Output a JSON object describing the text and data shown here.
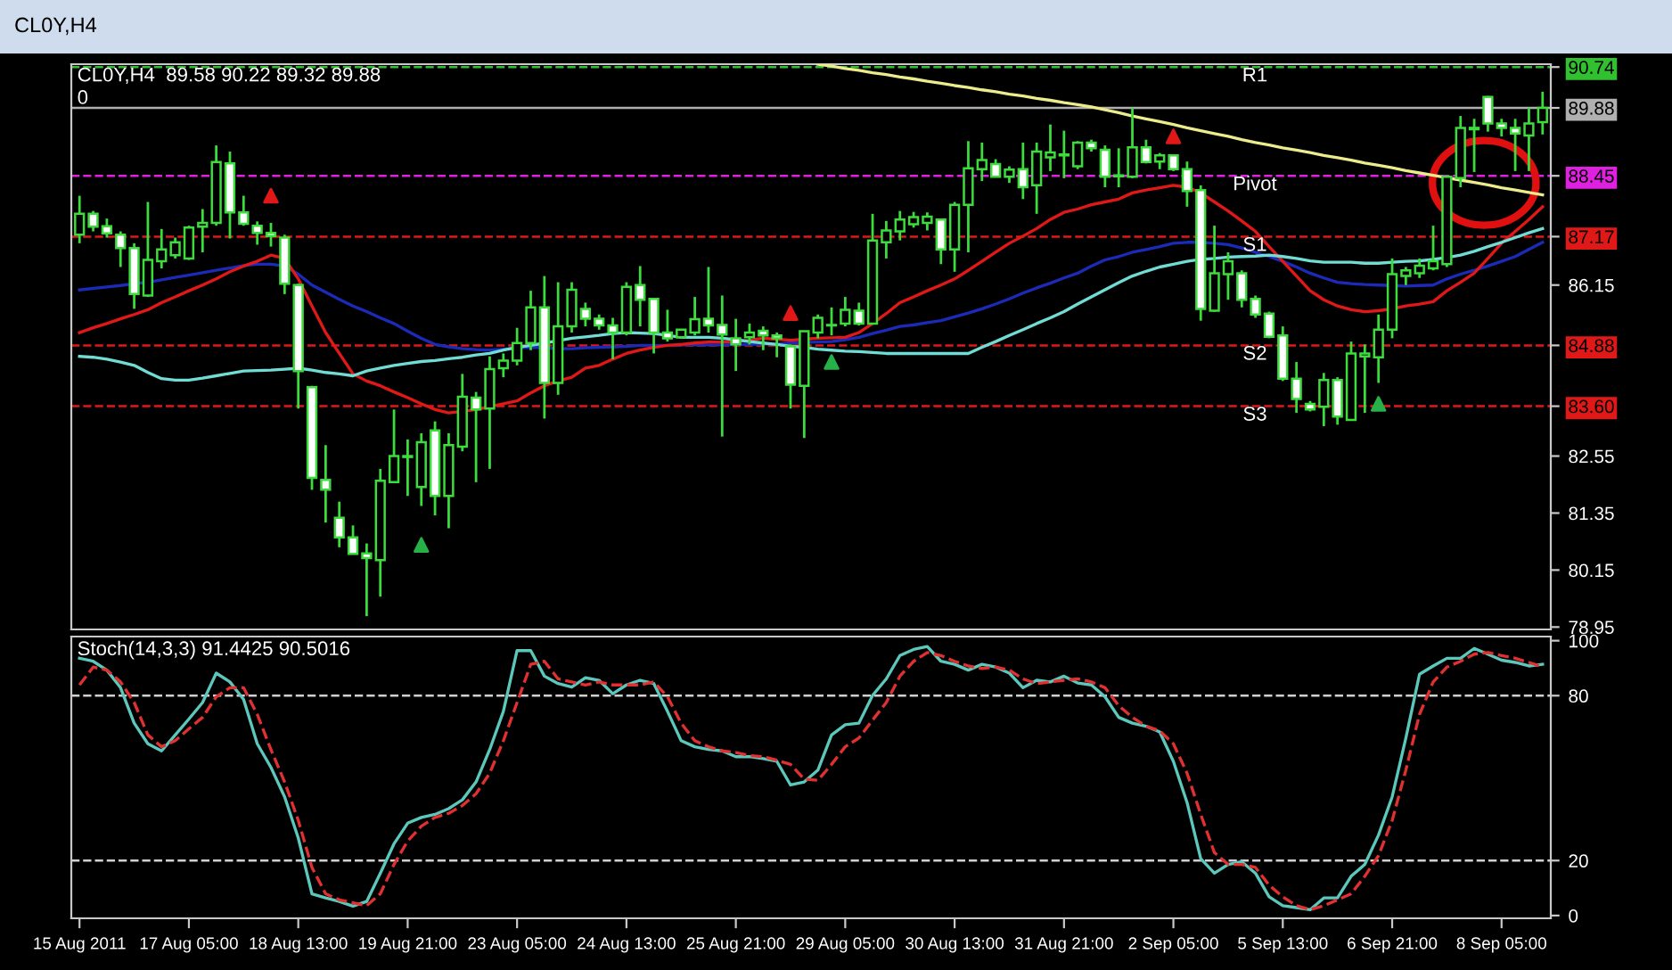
{
  "chart_data": [
    {
      "type": "candlestick",
      "title": "CL0Y,H4",
      "subtitle": "CL0Y,H4  89.58 90.22 89.32 89.88",
      "annotations": [
        "0"
      ],
      "categories": [
        null,
        null,
        null,
        null,
        null,
        null,
        null,
        null,
        null,
        null,
        null,
        null,
        null,
        null,
        null,
        null,
        null,
        null,
        null,
        null,
        null,
        null,
        null,
        null,
        null,
        null,
        null,
        null,
        null,
        null,
        null,
        null,
        null,
        null,
        null,
        null,
        null,
        null,
        null,
        null,
        null,
        null,
        null,
        null,
        null,
        null,
        null,
        null,
        null,
        null,
        null,
        null,
        null,
        null,
        null,
        null,
        null,
        null,
        null,
        null,
        null,
        null,
        null,
        null,
        null,
        null,
        null,
        null,
        null,
        null,
        null,
        null,
        null,
        null,
        null,
        null,
        null,
        null,
        null,
        null,
        null,
        null,
        null,
        null,
        null,
        null,
        null,
        null,
        null,
        null,
        null,
        null,
        null,
        null,
        null,
        null,
        null,
        null,
        null,
        null,
        null,
        null,
        null,
        null,
        null,
        null,
        null,
        null
      ],
      "ohlc": [
        [
          87.21,
          88.03,
          87.03,
          87.65
        ],
        [
          87.65,
          87.71,
          87.28,
          87.38
        ],
        [
          87.39,
          87.55,
          87.15,
          87.24
        ],
        [
          87.21,
          87.28,
          86.53,
          86.93
        ],
        [
          86.93,
          87.03,
          85.65,
          85.96
        ],
        [
          85.93,
          87.9,
          85.9,
          86.68
        ],
        [
          86.65,
          87.33,
          86.5,
          86.9
        ],
        [
          86.78,
          87.15,
          86.71,
          87.05
        ],
        [
          86.71,
          87.4,
          86.68,
          87.36
        ],
        [
          87.38,
          87.75,
          86.84,
          87.46
        ],
        [
          87.46,
          89.09,
          87.4,
          88.74
        ],
        [
          88.71,
          88.96,
          87.13,
          87.68
        ],
        [
          87.68,
          88.03,
          87.4,
          87.44
        ],
        [
          87.4,
          87.49,
          87.0,
          87.25
        ],
        [
          87.25,
          87.46,
          86.96,
          87.18
        ],
        [
          87.15,
          87.21,
          85.96,
          86.18
        ],
        [
          86.15,
          86.18,
          83.55,
          84.34
        ],
        [
          84.0,
          84.03,
          81.84,
          82.09
        ],
        [
          82.05,
          82.78,
          81.15,
          81.84
        ],
        [
          81.25,
          81.59,
          80.63,
          80.84
        ],
        [
          80.84,
          81.09,
          80.49,
          80.49
        ],
        [
          80.5,
          80.71,
          79.18,
          80.4
        ],
        [
          80.36,
          82.28,
          79.59,
          82.03
        ],
        [
          82.0,
          83.53,
          82.0,
          82.55
        ],
        [
          82.53,
          82.9,
          81.71,
          82.55
        ],
        [
          81.9,
          83.03,
          81.5,
          82.84
        ],
        [
          83.09,
          83.28,
          81.3,
          81.71
        ],
        [
          81.71,
          83.03,
          81.03,
          82.78
        ],
        [
          82.75,
          84.28,
          82.65,
          83.8
        ],
        [
          83.78,
          83.9,
          82.0,
          83.53
        ],
        [
          83.55,
          84.65,
          82.28,
          84.38
        ],
        [
          84.4,
          84.71,
          84.21,
          84.56
        ],
        [
          84.56,
          85.25,
          84.46,
          84.93
        ],
        [
          84.93,
          86.03,
          84.78,
          85.68
        ],
        [
          85.68,
          86.34,
          83.34,
          84.09
        ],
        [
          84.09,
          86.21,
          83.84,
          85.28
        ],
        [
          85.28,
          86.21,
          85.15,
          86.05
        ],
        [
          85.65,
          85.78,
          85.28,
          85.44
        ],
        [
          85.44,
          85.53,
          85.21,
          85.3
        ],
        [
          85.3,
          85.46,
          84.59,
          85.15
        ],
        [
          85.15,
          86.21,
          85.09,
          86.11
        ],
        [
          86.15,
          86.55,
          85.28,
          85.84
        ],
        [
          85.86,
          85.88,
          84.71,
          85.15
        ],
        [
          85.15,
          85.63,
          84.96,
          85.03
        ],
        [
          85.05,
          85.21,
          85.03,
          85.21
        ],
        [
          85.15,
          85.9,
          85.09,
          85.43
        ],
        [
          85.44,
          86.53,
          85.15,
          85.3
        ],
        [
          85.31,
          85.93,
          82.96,
          85.11
        ],
        [
          85.03,
          85.44,
          84.34,
          84.9
        ],
        [
          85.05,
          85.34,
          84.9,
          85.15
        ],
        [
          85.19,
          85.28,
          84.78,
          85.09
        ],
        [
          85.09,
          85.15,
          84.63,
          85.03
        ],
        [
          84.86,
          84.9,
          83.55,
          84.05
        ],
        [
          84.03,
          85.18,
          82.93,
          85.18
        ],
        [
          85.15,
          85.53,
          85.03,
          85.46
        ],
        [
          85.3,
          85.68,
          85.09,
          85.31
        ],
        [
          85.34,
          85.9,
          85.28,
          85.63
        ],
        [
          85.61,
          85.78,
          85.3,
          85.34
        ],
        [
          85.34,
          87.65,
          85.34,
          87.09
        ],
        [
          87.05,
          87.5,
          86.71,
          87.3
        ],
        [
          87.28,
          87.71,
          87.09,
          87.53
        ],
        [
          87.43,
          87.69,
          87.36,
          87.58
        ],
        [
          87.46,
          87.68,
          87.3,
          87.59
        ],
        [
          87.53,
          87.55,
          86.59,
          86.9
        ],
        [
          86.9,
          87.9,
          86.43,
          87.84
        ],
        [
          87.84,
          89.18,
          86.84,
          88.61
        ],
        [
          88.59,
          89.15,
          88.34,
          88.78
        ],
        [
          88.7,
          88.8,
          88.43,
          88.43
        ],
        [
          88.43,
          88.65,
          88.3,
          88.58
        ],
        [
          88.59,
          89.15,
          87.96,
          88.21
        ],
        [
          88.25,
          89.15,
          87.65,
          88.96
        ],
        [
          88.84,
          89.53,
          88.55,
          88.94
        ],
        [
          88.88,
          89.4,
          88.4,
          88.9
        ],
        [
          88.65,
          89.18,
          88.59,
          89.15
        ],
        [
          89.15,
          89.21,
          88.96,
          89.03
        ],
        [
          89.0,
          89.09,
          88.21,
          88.43
        ],
        [
          88.44,
          89.03,
          88.21,
          88.46
        ],
        [
          88.43,
          89.88,
          88.4,
          89.05
        ],
        [
          89.05,
          89.21,
          88.71,
          88.74
        ],
        [
          88.75,
          88.93,
          88.59,
          88.88
        ],
        [
          88.88,
          88.9,
          88.55,
          88.59
        ],
        [
          88.59,
          88.75,
          87.8,
          88.13
        ],
        [
          88.15,
          88.25,
          85.4,
          85.65
        ],
        [
          85.61,
          87.4,
          85.59,
          86.4
        ],
        [
          86.38,
          86.84,
          85.84,
          86.65
        ],
        [
          86.4,
          86.46,
          85.68,
          85.84
        ],
        [
          85.86,
          85.93,
          85.46,
          85.53
        ],
        [
          85.55,
          85.59,
          85.03,
          85.06
        ],
        [
          85.09,
          85.28,
          84.13,
          84.18
        ],
        [
          84.18,
          84.53,
          83.46,
          83.75
        ],
        [
          83.65,
          83.71,
          83.49,
          83.53
        ],
        [
          83.59,
          84.3,
          83.18,
          84.15
        ],
        [
          84.15,
          84.21,
          83.21,
          83.38
        ],
        [
          83.31,
          84.96,
          83.31,
          84.71
        ],
        [
          84.65,
          84.9,
          83.46,
          84.71
        ],
        [
          84.63,
          85.53,
          84.09,
          85.21
        ],
        [
          85.21,
          86.71,
          85.03,
          86.38
        ],
        [
          86.34,
          86.53,
          86.15,
          86.46
        ],
        [
          86.4,
          86.71,
          86.3,
          86.56
        ],
        [
          86.5,
          87.4,
          86.46,
          86.65
        ],
        [
          86.59,
          88.46,
          86.53,
          88.43
        ],
        [
          88.4,
          89.71,
          88.21,
          89.46
        ],
        [
          89.43,
          89.65,
          88.53,
          89.46
        ],
        [
          90.11,
          90.13,
          89.38,
          89.55
        ],
        [
          89.55,
          89.65,
          89.28,
          89.46
        ],
        [
          89.46,
          89.65,
          88.55,
          89.34
        ],
        [
          89.3,
          89.88,
          88.55,
          89.55
        ],
        [
          89.58,
          90.22,
          89.32,
          89.88
        ]
      ],
      "series": [
        {
          "type": "line",
          "color": "#ecec8c",
          "values": [
            null,
            null,
            null,
            null,
            null,
            null,
            null,
            null,
            null,
            null,
            null,
            null,
            null,
            null,
            null,
            null,
            null,
            null,
            null,
            null,
            null,
            null,
            null,
            null,
            null,
            null,
            null,
            null,
            null,
            null,
            null,
            null,
            null,
            null,
            null,
            null,
            null,
            null,
            null,
            null,
            null,
            null,
            null,
            null,
            null,
            null,
            null,
            null,
            null,
            null,
            null,
            null,
            null,
            null,
            90.8,
            90.76,
            90.71,
            90.67,
            90.62,
            90.58,
            90.53,
            90.49,
            90.44,
            90.4,
            90.35,
            90.31,
            90.26,
            90.22,
            90.17,
            90.13,
            90.08,
            90.04,
            89.99,
            89.95,
            89.9,
            89.84,
            89.78,
            89.71,
            89.65,
            89.59,
            89.53,
            89.46,
            89.4,
            89.34,
            89.28,
            89.21,
            89.15,
            89.1,
            89.04,
            88.99,
            88.94,
            88.88,
            88.83,
            88.78,
            88.72,
            88.67,
            88.62,
            88.56,
            88.51,
            88.46,
            88.41,
            88.36,
            88.31,
            88.26,
            88.2,
            88.15,
            88.1,
            88.05
          ]
        },
        {
          "type": "line",
          "color": "#1c2ab8",
          "values": [
            86.05,
            86.08,
            86.11,
            86.14,
            86.18,
            86.21,
            86.26,
            86.31,
            86.36,
            86.41,
            86.46,
            86.51,
            86.56,
            86.59,
            86.59,
            86.55,
            86.38,
            86.15,
            86.0,
            85.85,
            85.71,
            85.59,
            85.46,
            85.34,
            85.18,
            85.03,
            84.9,
            84.85,
            84.81,
            84.79,
            84.78,
            84.8,
            84.83,
            84.84,
            84.83,
            84.81,
            84.81,
            84.83,
            84.84,
            84.85,
            84.86,
            84.88,
            84.88,
            84.88,
            84.89,
            84.89,
            84.89,
            84.89,
            84.9,
            84.9,
            84.91,
            84.91,
            84.93,
            84.94,
            84.95,
            84.96,
            85.0,
            85.05,
            85.13,
            85.2,
            85.28,
            85.31,
            85.36,
            85.4,
            85.48,
            85.56,
            85.65,
            85.75,
            85.86,
            85.98,
            86.09,
            86.19,
            86.3,
            86.4,
            86.55,
            86.68,
            86.75,
            86.84,
            86.9,
            86.96,
            87.03,
            87.05,
            87.05,
            87.03,
            87.0,
            86.93,
            86.84,
            86.75,
            86.65,
            86.53,
            86.4,
            86.3,
            86.21,
            86.18,
            86.16,
            86.15,
            86.14,
            86.13,
            86.14,
            86.15,
            86.28,
            86.38,
            86.46,
            86.55,
            86.65,
            86.75,
            86.9,
            87.05
          ]
        },
        {
          "type": "line",
          "color": "#e01818",
          "values": [
            85.15,
            85.25,
            85.34,
            85.44,
            85.53,
            85.63,
            85.78,
            85.9,
            86.03,
            86.15,
            86.28,
            86.43,
            86.55,
            86.65,
            86.78,
            86.71,
            86.28,
            85.71,
            85.15,
            84.71,
            84.28,
            84.13,
            84.03,
            83.9,
            83.78,
            83.65,
            83.53,
            83.46,
            83.49,
            83.53,
            83.59,
            83.65,
            83.71,
            83.88,
            84.03,
            84.13,
            84.21,
            84.4,
            84.46,
            84.59,
            84.71,
            84.78,
            84.84,
            84.88,
            84.9,
            84.93,
            84.95,
            84.95,
            84.96,
            84.99,
            85.03,
            85.01,
            84.99,
            85.01,
            85.03,
            85.04,
            85.05,
            85.15,
            85.34,
            85.55,
            85.78,
            85.9,
            86.03,
            86.15,
            86.28,
            86.46,
            86.65,
            86.84,
            87.03,
            87.18,
            87.34,
            87.53,
            87.68,
            87.75,
            87.84,
            87.9,
            87.96,
            88.09,
            88.15,
            88.2,
            88.25,
            88.21,
            88.09,
            87.9,
            87.71,
            87.5,
            87.28,
            86.96,
            86.65,
            86.34,
            86.03,
            85.84,
            85.71,
            85.63,
            85.59,
            85.61,
            85.65,
            85.71,
            85.75,
            85.8,
            86.03,
            86.21,
            86.4,
            86.71,
            87.03,
            87.28,
            87.53,
            87.8
          ]
        },
        {
          "type": "line",
          "color": "#70dcd4",
          "values": [
            84.65,
            84.63,
            84.59,
            84.53,
            84.46,
            84.31,
            84.18,
            84.15,
            84.15,
            84.19,
            84.24,
            84.29,
            84.34,
            84.35,
            84.36,
            84.38,
            84.4,
            84.36,
            84.31,
            84.28,
            84.24,
            84.34,
            84.4,
            84.46,
            84.5,
            84.54,
            84.56,
            84.6,
            84.63,
            84.68,
            84.71,
            84.78,
            84.84,
            84.88,
            84.93,
            84.98,
            85.03,
            85.06,
            85.09,
            85.13,
            85.15,
            85.14,
            85.13,
            85.09,
            85.05,
            85.05,
            85.05,
            85.03,
            85.0,
            84.96,
            84.93,
            84.9,
            84.86,
            84.84,
            84.8,
            84.78,
            84.76,
            84.75,
            84.73,
            84.71,
            84.71,
            84.71,
            84.71,
            84.71,
            84.71,
            84.71,
            84.84,
            84.96,
            85.09,
            85.21,
            85.34,
            85.46,
            85.59,
            85.75,
            85.9,
            86.05,
            86.2,
            86.34,
            86.44,
            86.53,
            86.59,
            86.65,
            86.69,
            86.71,
            86.74,
            86.75,
            86.76,
            86.78,
            86.75,
            86.71,
            86.66,
            86.63,
            86.63,
            86.63,
            86.61,
            86.61,
            86.63,
            86.65,
            86.66,
            86.69,
            86.73,
            86.78,
            86.86,
            86.96,
            87.05,
            87.15,
            87.25,
            87.34
          ]
        },
        {
          "type": "scatter",
          "color": "#e01818",
          "marker": "triangle",
          "values": [
            null,
            null,
            null,
            null,
            null,
            null,
            null,
            null,
            null,
            null,
            null,
            null,
            null,
            null,
            88.03,
            null,
            null,
            null,
            null,
            null,
            null,
            null,
            null,
            null,
            null,
            null,
            null,
            null,
            null,
            null,
            null,
            null,
            null,
            null,
            null,
            null,
            null,
            null,
            null,
            null,
            null,
            null,
            null,
            null,
            null,
            null,
            null,
            null,
            null,
            null,
            null,
            null,
            85.56,
            null,
            null,
            null,
            null,
            null,
            null,
            null,
            null,
            null,
            null,
            null,
            null,
            null,
            null,
            null,
            null,
            null,
            null,
            null,
            null,
            null,
            null,
            null,
            null,
            null,
            null,
            null,
            89.28,
            null,
            null,
            null,
            null,
            null,
            null,
            null,
            null,
            null,
            null,
            null,
            null,
            null,
            null,
            null,
            null,
            null,
            null,
            null,
            null,
            null,
            null,
            null,
            null,
            null,
            null,
            null
          ]
        },
        {
          "type": "scatter",
          "color": "#28b048",
          "marker": "triangle",
          "values": [
            null,
            null,
            null,
            null,
            null,
            null,
            null,
            null,
            null,
            null,
            null,
            null,
            null,
            null,
            null,
            null,
            null,
            null,
            null,
            null,
            null,
            null,
            null,
            null,
            null,
            80.68,
            null,
            null,
            null,
            null,
            null,
            null,
            null,
            null,
            null,
            null,
            null,
            null,
            null,
            null,
            null,
            null,
            null,
            null,
            null,
            null,
            null,
            null,
            null,
            null,
            null,
            null,
            null,
            null,
            null,
            84.53,
            null,
            null,
            null,
            null,
            null,
            null,
            null,
            null,
            null,
            null,
            null,
            null,
            null,
            null,
            null,
            null,
            null,
            null,
            null,
            null,
            null,
            null,
            null,
            null,
            null,
            null,
            null,
            null,
            null,
            null,
            null,
            null,
            null,
            null,
            null,
            null,
            null,
            null,
            null,
            83.65,
            null,
            null,
            null,
            null,
            null,
            null,
            null,
            null,
            null,
            null,
            null,
            null
          ]
        }
      ],
      "ylim": [
        78.9,
        90.8
      ],
      "yticks": [
        90.74,
        89.88,
        88.45,
        87.17,
        86.15,
        84.88,
        {
          "value": 83.6,
          "label": "83.60"
        },
        82.55,
        81.35,
        80.15,
        78.95
      ],
      "ref_lines": [
        {
          "axis": "y",
          "value": 90.74,
          "label": "R1",
          "color": "#30c030",
          "line_style": "dashed"
        },
        {
          "axis": "y",
          "value": 89.88,
          "color": "#b0b0b0",
          "line_style": "solid"
        },
        {
          "axis": "y",
          "value": 88.45,
          "label": "Pivot",
          "color": "#e020e0",
          "line_style": "dashed"
        },
        {
          "axis": "y",
          "value": 87.17,
          "label": "S1",
          "color": "#e01818",
          "line_style": "dashed"
        },
        {
          "axis": "y",
          "value": 84.88,
          "label": "S2",
          "color": "#e01818",
          "line_style": "dashed"
        },
        {
          "axis": "y",
          "value": 83.6,
          "label": "S3",
          "color": "#e01818",
          "line_style": "dashed"
        }
      ],
      "tick_labels": "y"
    },
    {
      "type": "line",
      "title": "Stoch(14,3,3) 91.4425 90.5016",
      "categories": [
        "15 Aug 2011",
        null,
        null,
        null,
        null,
        null,
        null,
        null,
        "17 Aug 05:00",
        null,
        null,
        null,
        null,
        null,
        null,
        null,
        "18 Aug 13:00",
        null,
        null,
        null,
        null,
        null,
        null,
        null,
        "19 Aug 21:00",
        null,
        null,
        null,
        null,
        null,
        null,
        null,
        "23 Aug 05:00",
        null,
        null,
        null,
        null,
        null,
        null,
        null,
        "24 Aug 13:00",
        null,
        null,
        null,
        null,
        null,
        null,
        null,
        "25 Aug 21:00",
        null,
        null,
        null,
        null,
        null,
        null,
        null,
        "29 Aug 05:00",
        null,
        null,
        null,
        null,
        null,
        null,
        null,
        "30 Aug 13:00",
        null,
        null,
        null,
        null,
        null,
        null,
        null,
        "31 Aug 21:00",
        null,
        null,
        null,
        null,
        null,
        null,
        null,
        "2 Sep 05:00",
        null,
        null,
        null,
        null,
        null,
        null,
        null,
        "5 Sep 13:00",
        null,
        null,
        null,
        null,
        null,
        null,
        null,
        "6 Sep 21:00",
        null,
        null,
        null,
        null,
        null,
        null,
        null,
        "8 Sep 05:00",
        null,
        null,
        null
      ],
      "series": [
        {
          "color": "#5cc8bc",
          "line_style": "solid",
          "values": [
            93.6,
            92.5,
            89.3,
            82.9,
            70.0,
            62.5,
            59.9,
            65.7,
            71.5,
            77.5,
            88.2,
            85.0,
            78.6,
            62.5,
            53.9,
            43.2,
            28.2,
            7.9,
            6.4,
            5.1,
            3.4,
            5.1,
            15.4,
            26.1,
            33.6,
            35.7,
            36.8,
            38.9,
            42.1,
            48.6,
            60.4,
            74.3,
            96.4,
            96.4,
            87.1,
            84.4,
            83.1,
            86.5,
            85.6,
            80.7,
            83.9,
            85.6,
            84.4,
            74.3,
            63.6,
            61.4,
            60.4,
            59.9,
            57.8,
            57.8,
            57.1,
            56.1,
            47.5,
            48.6,
            52.9,
            65.7,
            69.4,
            70.0,
            80.1,
            86.1,
            94.6,
            96.8,
            97.9,
            92.5,
            91.4,
            89.3,
            91.4,
            90.4,
            88.2,
            82.9,
            85.6,
            85.0,
            87.1,
            84.6,
            83.9,
            79.6,
            72.1,
            70.0,
            68.9,
            66.8,
            56.1,
            41.1,
            20.7,
            15.4,
            18.6,
            19.6,
            15.4,
            6.8,
            3.6,
            2.9,
            2.1,
            6.4,
            6.4,
            14.3,
            18.6,
            29.3,
            43.2,
            64.6,
            87.8,
            90.8,
            93.6,
            93.6,
            97.2,
            95.1,
            92.9,
            92.1,
            90.8,
            91.4
          ]
        },
        {
          "color": "#e03030",
          "line_style": "dashed",
          "values": [
            83.9,
            90.4,
            89.3,
            85.0,
            77.5,
            65.7,
            61.4,
            63.6,
            67.9,
            72.1,
            79.6,
            82.9,
            82.9,
            73.2,
            60.4,
            48.6,
            34.6,
            17.5,
            7.9,
            5.7,
            4.6,
            3.6,
            7.9,
            18.6,
            27.1,
            32.5,
            35.7,
            37.2,
            40.0,
            44.3,
            51.8,
            63.6,
            77.5,
            91.4,
            92.5,
            86.1,
            85.0,
            83.9,
            85.0,
            83.9,
            83.9,
            83.9,
            85.0,
            79.6,
            70.0,
            63.6,
            61.4,
            59.9,
            59.3,
            58.2,
            57.8,
            56.5,
            55.0,
            49.6,
            49.2,
            55.0,
            61.4,
            64.6,
            71.1,
            77.5,
            87.1,
            92.5,
            95.7,
            94.6,
            92.5,
            90.8,
            89.9,
            90.4,
            89.3,
            86.1,
            84.4,
            85.0,
            85.6,
            86.1,
            85.0,
            82.9,
            76.4,
            72.1,
            68.9,
            67.2,
            62.5,
            51.8,
            36.8,
            22.9,
            18.6,
            18.6,
            17.5,
            11.1,
            6.8,
            3.6,
            2.1,
            3.6,
            5.7,
            7.9,
            14.3,
            21.8,
            34.6,
            52.9,
            73.2,
            85.0,
            90.4,
            92.5,
            95.1,
            95.7,
            94.6,
            93.6,
            92.1,
            90.5
          ]
        }
      ],
      "ylim": [
        -1,
        101.5
      ],
      "yticks": [
        100,
        80,
        20,
        0
      ],
      "ref_lines": [
        {
          "axis": "y",
          "value": 80,
          "color": "#d0d0d0",
          "line_style": "dashed"
        },
        {
          "axis": "y",
          "value": 20,
          "color": "#d0d0d0",
          "line_style": "dashed"
        }
      ]
    }
  ]
}
